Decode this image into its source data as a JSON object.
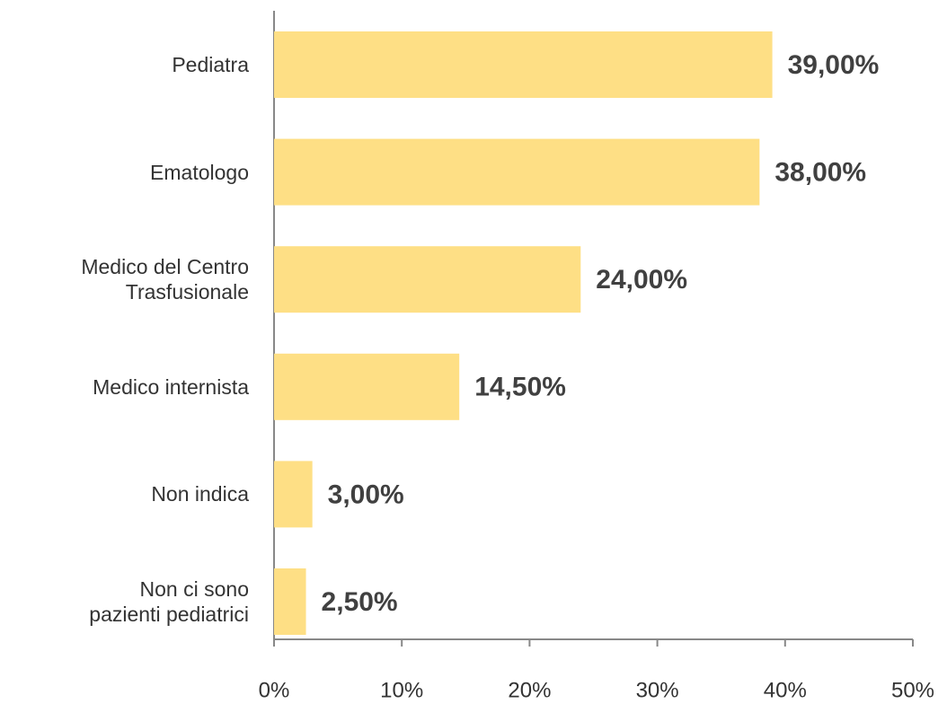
{
  "chart_data": {
    "type": "barh",
    "categories": [
      "Pediatra",
      "Ematologo",
      "Medico del Centro\nTrasfusionale",
      "Medico internista",
      "Non indica",
      "Non ci sono\npazienti pediatrici"
    ],
    "values": [
      39,
      38,
      24,
      14.5,
      3,
      2.5
    ],
    "value_labels": [
      "39,00%",
      "38,00%",
      "24,00%",
      "14,50%",
      "3,00%",
      "2,50%"
    ],
    "color": "#fedf85",
    "xlim": [
      0,
      50
    ],
    "xticks": [
      {
        "value": 0,
        "label": "0%"
      },
      {
        "value": 10,
        "label": "10%"
      },
      {
        "value": 20,
        "label": "20%"
      },
      {
        "value": 30,
        "label": "30%"
      },
      {
        "value": 40,
        "label": "40%"
      },
      {
        "value": 50,
        "label": "50%"
      }
    ]
  }
}
